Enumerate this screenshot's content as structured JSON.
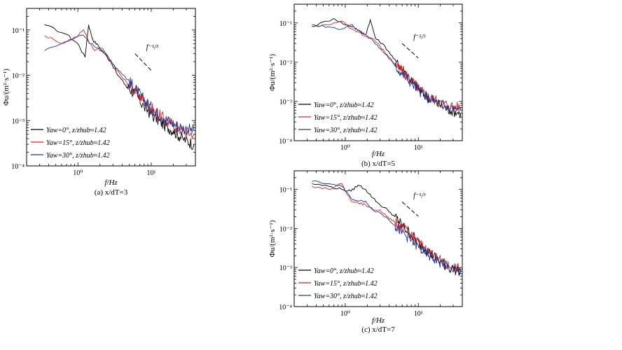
{
  "colors": {
    "yaw0": "#000000",
    "yaw15": "#e02020",
    "yaw30": "#1a3a9a"
  },
  "chart_data": [
    {
      "type": "line",
      "panel": "(a)",
      "caption": "(a) x/dT=3",
      "xlabel": "f/Hz",
      "ylabel": "Φu/(m²·s⁻¹)",
      "x_scale": "log",
      "y_scale": "log",
      "xlim": [
        0.2,
        40
      ],
      "ylim": [
        0.0001,
        0.3
      ],
      "x_ticks": [
        {
          "value": 1,
          "label": "10⁰"
        },
        {
          "value": 10,
          "label": "10¹"
        }
      ],
      "y_ticks": [
        {
          "value": 0.1,
          "label": "10⁻¹"
        },
        {
          "value": 0.01,
          "label": "10⁻²"
        },
        {
          "value": 0.001,
          "label": "10⁻³"
        },
        {
          "value": 0.0001,
          "label": "10⁻⁴"
        }
      ],
      "annotation": "f⁻⁵/³",
      "legend_position": "bottom-left",
      "series": [
        {
          "name": "Yaw=0°, z/zhub≈1.42",
          "color_key": "yaw0",
          "x": [
            0.35,
            0.7,
            1.0,
            1.25,
            1.4,
            1.6,
            1.9,
            2.3,
            2.8,
            3.5,
            4.5,
            6,
            8,
            11,
            15,
            20,
            27,
            38
          ],
          "y": [
            0.13,
            0.08,
            0.05,
            0.025,
            0.13,
            0.06,
            0.045,
            0.03,
            0.02,
            0.01,
            0.006,
            0.004,
            0.002,
            0.0012,
            0.0008,
            0.0006,
            0.0004,
            0.0003
          ]
        },
        {
          "name": "Yaw=15°, z/zhub≈1.42",
          "color_key": "yaw15",
          "x": [
            0.35,
            0.6,
            0.9,
            1.2,
            1.45,
            1.7,
            2.1,
            2.6,
            3.2,
            4,
            5,
            6.5,
            8.5,
            11,
            15,
            20,
            27,
            38
          ],
          "y": [
            0.075,
            0.05,
            0.065,
            0.1,
            0.05,
            0.035,
            0.04,
            0.025,
            0.015,
            0.009,
            0.006,
            0.004,
            0.0025,
            0.0016,
            0.0011,
            0.0008,
            0.0006,
            0.0005
          ]
        },
        {
          "name": "Yaw=30°, z/zhub≈1.42",
          "color_key": "yaw30",
          "x": [
            0.35,
            0.6,
            0.9,
            1.2,
            1.5,
            1.9,
            2.4,
            3,
            3.8,
            4.8,
            6,
            8,
            10.5,
            14,
            19,
            26,
            38
          ],
          "y": [
            0.035,
            0.05,
            0.07,
            0.075,
            0.05,
            0.04,
            0.03,
            0.018,
            0.012,
            0.008,
            0.005,
            0.0028,
            0.0018,
            0.0012,
            0.0009,
            0.0007,
            0.0006
          ]
        }
      ]
    },
    {
      "type": "line",
      "panel": "(b)",
      "caption": "(b) x/dT=5",
      "xlabel": "f/Hz",
      "ylabel": "Φu/(m²·s⁻¹)",
      "x_scale": "log",
      "y_scale": "log",
      "xlim": [
        0.2,
        40
      ],
      "ylim": [
        0.0001,
        0.3
      ],
      "x_ticks": [
        {
          "value": 1,
          "label": "10⁰"
        },
        {
          "value": 10,
          "label": "10¹"
        }
      ],
      "y_ticks": [
        {
          "value": 0.1,
          "label": "10⁻¹"
        },
        {
          "value": 0.01,
          "label": "10⁻²"
        },
        {
          "value": 0.001,
          "label": "10⁻³"
        },
        {
          "value": 0.0001,
          "label": "10⁻⁴"
        }
      ],
      "annotation": "f⁻⁵/³",
      "legend_position": "bottom-left",
      "series": [
        {
          "name": "Yaw=0°, z/zhub≈1.42",
          "color_key": "yaw0",
          "x": [
            0.35,
            0.7,
            1.0,
            1.3,
            1.6,
            1.9,
            2.2,
            2.6,
            3.2,
            4,
            5,
            6.5,
            8.5,
            11,
            15,
            20,
            27,
            38
          ],
          "y": [
            0.08,
            0.13,
            0.09,
            0.08,
            0.06,
            0.05,
            0.12,
            0.04,
            0.03,
            0.018,
            0.01,
            0.006,
            0.003,
            0.0017,
            0.0011,
            0.0008,
            0.0006,
            0.0005
          ]
        },
        {
          "name": "Yaw=15°, z/zhub≈1.42",
          "color_key": "yaw15",
          "x": [
            0.35,
            0.6,
            0.9,
            1.2,
            1.5,
            1.9,
            2.4,
            3,
            3.8,
            4.8,
            6,
            8,
            10.5,
            14,
            19,
            26,
            38
          ],
          "y": [
            0.08,
            0.09,
            0.11,
            0.07,
            0.06,
            0.045,
            0.04,
            0.025,
            0.015,
            0.009,
            0.006,
            0.0035,
            0.002,
            0.0013,
            0.001,
            0.0008,
            0.0007
          ]
        },
        {
          "name": "Yaw=30°, z/zhub≈1.42",
          "color_key": "yaw30",
          "x": [
            0.35,
            0.6,
            0.9,
            1.2,
            1.5,
            1.9,
            2.4,
            3,
            3.8,
            4.8,
            6,
            8,
            10.5,
            14,
            19,
            26,
            38
          ],
          "y": [
            0.09,
            0.08,
            0.07,
            0.09,
            0.065,
            0.05,
            0.035,
            0.022,
            0.014,
            0.008,
            0.005,
            0.003,
            0.0018,
            0.0012,
            0.0009,
            0.0007,
            0.0006
          ]
        }
      ]
    },
    {
      "type": "line",
      "panel": "(c)",
      "caption": "(c) x/dT=7",
      "xlabel": "f/Hz",
      "ylabel": "Φu/(m²·s⁻¹)",
      "x_scale": "log",
      "y_scale": "log",
      "xlim": [
        0.2,
        40
      ],
      "ylim": [
        0.0001,
        0.3
      ],
      "x_ticks": [
        {
          "value": 1,
          "label": "10⁰"
        },
        {
          "value": 10,
          "label": "10¹"
        }
      ],
      "y_ticks": [
        {
          "value": 0.1,
          "label": "10⁻¹"
        },
        {
          "value": 0.01,
          "label": "10⁻²"
        },
        {
          "value": 0.001,
          "label": "10⁻³"
        },
        {
          "value": 0.0001,
          "label": "10⁻⁴"
        }
      ],
      "annotation": "f⁻⁵/³",
      "legend_position": "bottom-left",
      "series": [
        {
          "name": "Yaw=0°, z/zhub≈1.42",
          "color_key": "yaw0",
          "x": [
            0.35,
            0.6,
            0.9,
            1.2,
            1.5,
            1.9,
            2.4,
            3,
            3.8,
            4.8,
            6,
            8,
            10.5,
            14,
            19,
            26,
            38
          ],
          "y": [
            0.14,
            0.12,
            0.1,
            0.09,
            0.13,
            0.1,
            0.06,
            0.04,
            0.03,
            0.02,
            0.012,
            0.007,
            0.004,
            0.0025,
            0.0015,
            0.001,
            0.0008
          ]
        },
        {
          "name": "Yaw=15°, z/zhub≈1.42",
          "color_key": "yaw15",
          "x": [
            0.35,
            0.6,
            0.9,
            1.2,
            1.5,
            1.9,
            2.4,
            3,
            3.8,
            4.8,
            6,
            8,
            10.5,
            14,
            19,
            26,
            38
          ],
          "y": [
            0.12,
            0.1,
            0.14,
            0.05,
            0.045,
            0.04,
            0.03,
            0.03,
            0.02,
            0.014,
            0.01,
            0.007,
            0.004,
            0.0025,
            0.0016,
            0.0011,
            0.0009
          ]
        },
        {
          "name": "Yaw=30°, z/zhub≈1.42",
          "color_key": "yaw30",
          "x": [
            0.35,
            0.6,
            0.9,
            1.2,
            1.5,
            1.9,
            2.4,
            3,
            3.8,
            4.8,
            6,
            8,
            10.5,
            14,
            19,
            26,
            38
          ],
          "y": [
            0.16,
            0.14,
            0.12,
            0.06,
            0.05,
            0.05,
            0.03,
            0.025,
            0.018,
            0.012,
            0.008,
            0.005,
            0.003,
            0.002,
            0.0014,
            0.001,
            0.0008
          ]
        }
      ]
    }
  ]
}
